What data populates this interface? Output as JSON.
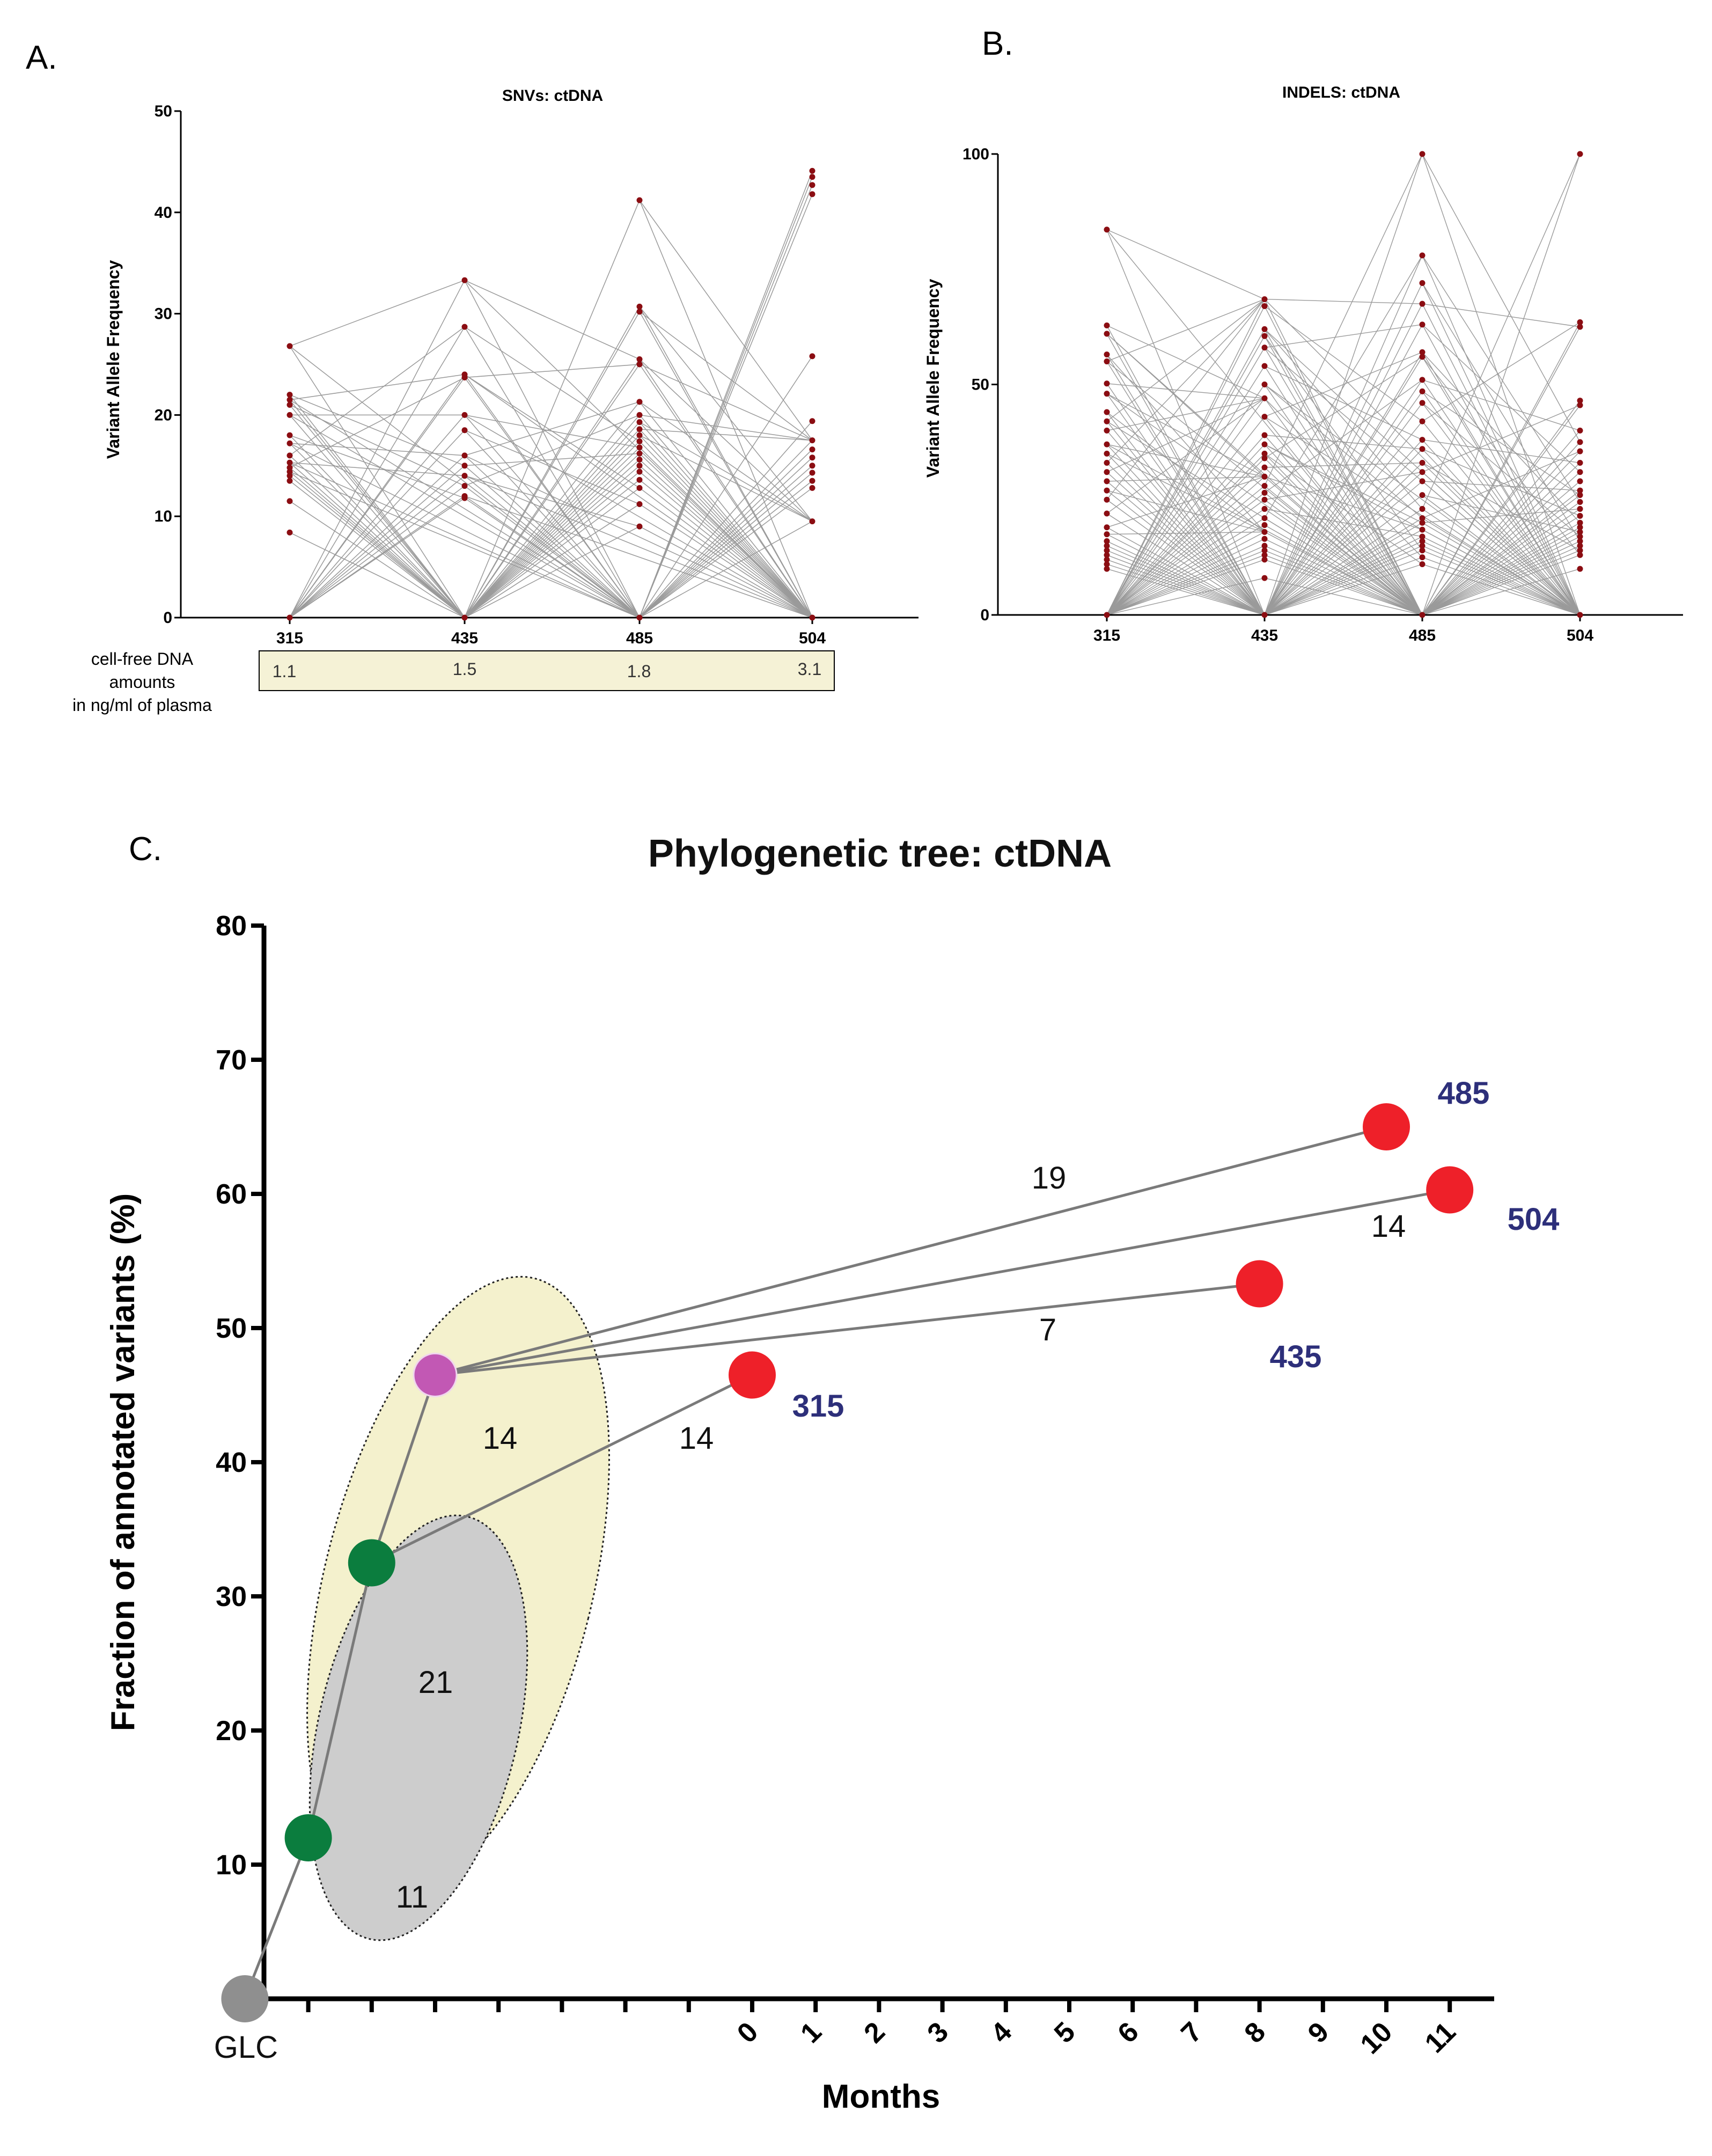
{
  "panels": {
    "a_letter": "A.",
    "b_letter": "B.",
    "c_letter": "C."
  },
  "colors": {
    "dot": "#8b0d12",
    "thin_line": "#9a9a9a",
    "box_fill": "#f5f2d6",
    "yellow_ellipse": "#f4f1cd",
    "grey_ellipse": "#cdcdcd",
    "node_red": "#ee2029",
    "node_green": "#0b7d3e",
    "node_magenta": "#c258b4",
    "node_grey": "#8f8f8f",
    "node_label": "#2d2f7a"
  },
  "cfdna": {
    "label_lines": [
      "cell-free DNA",
      "amounts",
      "in  ng/ml of plasma"
    ],
    "values": [
      "1.1",
      "1.5",
      "1.8",
      "3.1"
    ]
  },
  "chart_data": [
    {
      "id": "A",
      "type": "scatter",
      "title": "SNVs: ctDNA",
      "xlabel": "",
      "ylabel": "Variant Allele Frequency",
      "categories": [
        "315",
        "435",
        "485",
        "504"
      ],
      "ylim": [
        0,
        50
      ],
      "yticks": [
        "0",
        "10",
        "20",
        "30",
        "40",
        "50"
      ],
      "series": [
        {
          "name": "315",
          "values": [
            26.8,
            22.0,
            21.5,
            21.0,
            20.0,
            18.0,
            17.2,
            16.0,
            15.3,
            14.8,
            14.4,
            14.0,
            13.5,
            11.5,
            8.4
          ]
        },
        {
          "name": "435",
          "values": [
            33.3,
            28.7,
            24.0,
            23.7,
            20.0,
            18.5,
            16.0,
            15.0,
            14.0,
            13.0,
            12.0,
            11.8
          ]
        },
        {
          "name": "485",
          "values": [
            41.2,
            30.7,
            30.2,
            25.5,
            25.0,
            21.3,
            20.0,
            19.3,
            18.6,
            18.0,
            17.4,
            16.8,
            16.2,
            15.6,
            15.0,
            14.4,
            13.6,
            12.8,
            11.2,
            9.0
          ]
        },
        {
          "name": "504",
          "values": [
            44.1,
            43.5,
            42.7,
            41.8,
            25.8,
            19.4,
            17.5,
            16.6,
            15.8,
            15.0,
            14.3,
            13.5,
            12.8,
            9.5
          ]
        }
      ]
    },
    {
      "id": "B",
      "type": "scatter",
      "title": "INDELS: ctDNA",
      "xlabel": "",
      "ylabel": "Variant Allele Frequency",
      "categories": [
        "315",
        "435",
        "485",
        "504"
      ],
      "ylim": [
        0,
        100
      ],
      "yticks": [
        "0",
        "50",
        "100"
      ],
      "series": [
        {
          "name": "315",
          "values": [
            83.6,
            62.8,
            61.0,
            56.5,
            55.0,
            50.2,
            48.0,
            44.0,
            42.0,
            40.0,
            37.0,
            35.0,
            33.0,
            31.0,
            29.0,
            27.0,
            25.0,
            22.0,
            19.0,
            17.5,
            16.0,
            15.0,
            14.0,
            13.0,
            12.0,
            11.0,
            10.0
          ]
        },
        {
          "name": "435",
          "values": [
            68.5,
            67.0,
            62.0,
            60.5,
            58.0,
            54.0,
            50.0,
            47.0,
            43.0,
            39.0,
            37.0,
            35.0,
            34.0,
            32.0,
            30.0,
            28.0,
            26.5,
            25.0,
            23.0,
            21.0,
            19.5,
            18.0,
            16.5,
            15.0,
            14.0,
            13.0,
            12.0,
            8.0
          ]
        },
        {
          "name": "485",
          "values": [
            100.0,
            78.0,
            72.0,
            67.5,
            63.0,
            57.0,
            56.0,
            51.0,
            48.5,
            46.0,
            42.0,
            38.0,
            36.0,
            33.0,
            31.0,
            29.0,
            26.0,
            23.0,
            21.0,
            20.0,
            18.5,
            17.0,
            16.0,
            15.0,
            14.0,
            12.5,
            11.0
          ]
        },
        {
          "name": "504",
          "values": [
            100.0,
            63.5,
            62.5,
            46.5,
            45.5,
            40.0,
            37.5,
            35.5,
            33.0,
            31.0,
            29.0,
            27.0,
            26.0,
            24.5,
            23.0,
            21.5,
            20.0,
            19.0,
            18.0,
            17.0,
            16.0,
            15.0,
            14.0,
            13.0,
            10.0
          ]
        }
      ]
    },
    {
      "id": "C",
      "type": "scatter",
      "title": "Phylogenetic tree: ctDNA",
      "xlabel": "Months",
      "ylabel": "Fraction of annotated variants (%)",
      "ylim": [
        0,
        80
      ],
      "yticks": [
        "0",
        "10",
        "20",
        "30",
        "40",
        "50",
        "60",
        "70",
        "80"
      ],
      "xticks_unlabeled": 7,
      "xticks": [
        "0",
        "1",
        "2",
        "3",
        "4",
        "5",
        "6",
        "7",
        "8",
        "9",
        "10",
        "11"
      ],
      "glc_label": "GLC",
      "nodes": [
        {
          "name": "GLC",
          "x": -8,
          "y": 0,
          "kind": "germline"
        },
        {
          "name": "",
          "x": -7,
          "y": 12,
          "kind": "trunk"
        },
        {
          "name": "",
          "x": -6,
          "y": 32.5,
          "kind": "trunk"
        },
        {
          "name": "",
          "x": -5,
          "y": 46.5,
          "kind": "branch"
        },
        {
          "name": "315",
          "x": 0,
          "y": 46.5,
          "kind": "sample"
        },
        {
          "name": "435",
          "x": 8,
          "y": 53.3,
          "kind": "sample"
        },
        {
          "name": "485",
          "x": 10,
          "y": 65.0,
          "kind": "sample"
        },
        {
          "name": "504",
          "x": 11,
          "y": 60.3,
          "kind": "sample"
        }
      ],
      "edges": [
        {
          "from": 0,
          "to": 1,
          "label": "11"
        },
        {
          "from": 1,
          "to": 2,
          "label": "21"
        },
        {
          "from": 2,
          "to": 3,
          "label": "14"
        },
        {
          "from": 2,
          "to": 4,
          "label": "14"
        },
        {
          "from": 3,
          "to": 5,
          "label": "7"
        },
        {
          "from": 3,
          "to": 6,
          "label": "19"
        },
        {
          "from": 3,
          "to": 7,
          "label": "14"
        }
      ]
    }
  ]
}
